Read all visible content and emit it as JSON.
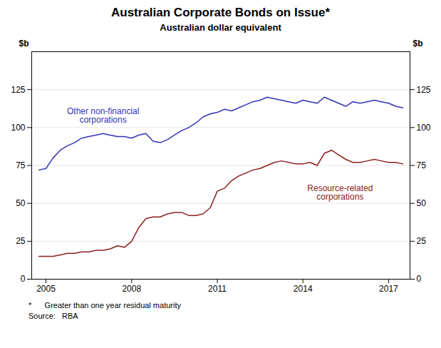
{
  "chart_data": {
    "type": "line",
    "title": "Australian Corporate Bonds on Issue*",
    "subtitle": "Australian dollar equivalent",
    "ylabel": "$b",
    "y2label": "$b",
    "footnote": "*      Greater than one year residual maturity",
    "source": "Source:   RBA",
    "xlim": [
      2004.5,
      2017.75
    ],
    "xticks": [
      2005,
      2008,
      2011,
      2014,
      2017
    ],
    "ylim": [
      0,
      150
    ],
    "yticks": [
      0,
      25,
      50,
      75,
      100,
      125
    ],
    "y2lim": [
      0,
      150
    ],
    "y2ticks": [
      0,
      25,
      50,
      75,
      100,
      125
    ],
    "grid": true,
    "x": [
      2004.75,
      2005.0,
      2005.25,
      2005.5,
      2005.75,
      2006.0,
      2006.25,
      2006.5,
      2006.75,
      2007.0,
      2007.25,
      2007.5,
      2007.75,
      2008.0,
      2008.25,
      2008.5,
      2008.75,
      2009.0,
      2009.25,
      2009.5,
      2009.75,
      2010.0,
      2010.25,
      2010.5,
      2010.75,
      2011.0,
      2011.25,
      2011.5,
      2011.75,
      2012.0,
      2012.25,
      2012.5,
      2012.75,
      2013.0,
      2013.25,
      2013.5,
      2013.75,
      2014.0,
      2014.25,
      2014.5,
      2014.75,
      2015.0,
      2015.25,
      2015.5,
      2015.75,
      2016.0,
      2016.25,
      2016.5,
      2016.75,
      2017.0,
      2017.25,
      2017.5
    ],
    "series": [
      {
        "color": "#3333BB",
        "values": [
          72,
          73,
          80,
          85,
          88,
          90,
          93,
          94,
          95,
          96,
          95,
          94,
          94,
          93,
          95,
          96,
          91,
          90,
          92,
          95,
          98,
          100,
          103,
          107,
          109,
          110,
          112,
          111,
          113,
          115,
          117,
          118,
          120,
          119,
          118,
          117,
          116,
          118,
          117,
          116,
          120,
          118,
          116,
          114,
          117,
          116,
          117,
          118,
          117,
          116,
          114,
          113
        ]
      },
      {
        "color": "#8B2020",
        "values": [
          15,
          15,
          15,
          16,
          17,
          17,
          18,
          18,
          19,
          19,
          20,
          22,
          21,
          25,
          34,
          40,
          41,
          41,
          43,
          44,
          44,
          42,
          42,
          43,
          47,
          58,
          60,
          65,
          68,
          70,
          72,
          73,
          75,
          77,
          78,
          77,
          76,
          76,
          77,
          75,
          83,
          85,
          82,
          79,
          77,
          77,
          78,
          79,
          78,
          77,
          77,
          76
        ]
      }
    ],
    "annotations": [
      {
        "text": "Other non-financial\ncorporations",
        "x": 2007.0,
        "y": 108,
        "color": "#3333BB"
      },
      {
        "text": "Resource-related\ncorporations",
        "x": 2015.3,
        "y": 57,
        "color": "#8B2020"
      }
    ]
  }
}
